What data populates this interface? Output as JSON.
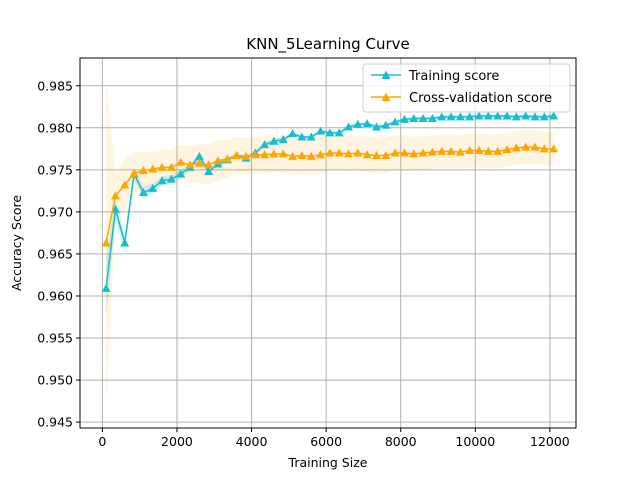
{
  "chart_data": {
    "type": "line",
    "title": "KNN_5Learning Curve",
    "xlabel": "Training Size",
    "ylabel": "Accuracy Score",
    "xlim": [
      -600,
      12700
    ],
    "ylim": [
      0.9443,
      0.9883
    ],
    "xticks": [
      0,
      2000,
      4000,
      6000,
      8000,
      10000,
      12000
    ],
    "yticks": [
      0.945,
      0.95,
      0.955,
      0.96,
      0.965,
      0.97,
      0.975,
      0.98,
      0.985
    ],
    "ytick_labels": [
      "0.945",
      "0.950",
      "0.955",
      "0.960",
      "0.965",
      "0.970",
      "0.975",
      "0.980",
      "0.985"
    ],
    "grid": true,
    "legend_position": "upper right",
    "x": [
      100,
      350,
      600,
      850,
      1100,
      1350,
      1600,
      1850,
      2100,
      2350,
      2600,
      2850,
      3100,
      3350,
      3600,
      3850,
      4100,
      4350,
      4600,
      4850,
      5100,
      5350,
      5600,
      5850,
      6100,
      6350,
      6600,
      6850,
      7100,
      7350,
      7600,
      7850,
      8100,
      8350,
      8600,
      8850,
      9100,
      9350,
      9600,
      9850,
      10100,
      10350,
      10600,
      10850,
      11100,
      11350,
      11600,
      11850,
      12100
    ],
    "series": [
      {
        "name": "Training score",
        "color": "#17becf",
        "marker": "triangle",
        "values": [
          0.9609,
          0.9703,
          0.9663,
          0.9745,
          0.9723,
          0.9728,
          0.9737,
          0.9739,
          0.9745,
          0.9753,
          0.9766,
          0.9748,
          0.9757,
          0.9762,
          0.9767,
          0.9764,
          0.977,
          0.978,
          0.9784,
          0.9786,
          0.9793,
          0.9789,
          0.9789,
          0.9796,
          0.9794,
          0.9794,
          0.9801,
          0.9804,
          0.9805,
          0.9801,
          0.9803,
          0.9807,
          0.981,
          0.9811,
          0.9811,
          0.9811,
          0.9813,
          0.9813,
          0.9813,
          0.9813,
          0.9814,
          0.9814,
          0.9814,
          0.9814,
          0.9813,
          0.9814,
          0.9813,
          0.9813,
          0.9814
        ],
        "band": {
          "color": "#17becf",
          "opacity": 0.22,
          "halfwidth": [
            0.0035,
            0.0012,
            0.001,
            0.0008,
            0.0007,
            0.0006,
            0.0005,
            0.0005,
            0.0005,
            0.0004,
            0.0004,
            0.0004,
            0.0003,
            0.0003,
            0.0003,
            0.0003,
            0.0003,
            0.0003,
            0.0003,
            0.0003,
            0.0002,
            0.0002,
            0.0002,
            0.0002,
            0.0002,
            0.0002,
            0.0002,
            0.0002,
            0.0002,
            0.0002,
            0.0002,
            0.0002,
            0.0002,
            0.0002,
            0.0002,
            0.0002,
            0.0002,
            0.0002,
            0.0002,
            0.0002,
            0.0002,
            0.0002,
            0.0002,
            0.0002,
            0.0002,
            0.0002,
            0.0002,
            0.0002,
            0.0002
          ]
        }
      },
      {
        "name": "Cross-validation score",
        "color": "#ffa500",
        "marker": "triangle",
        "values": [
          0.9663,
          0.9719,
          0.9732,
          0.9746,
          0.9749,
          0.9751,
          0.9753,
          0.9753,
          0.9759,
          0.9756,
          0.9758,
          0.9756,
          0.9761,
          0.9763,
          0.9767,
          0.9766,
          0.9768,
          0.9768,
          0.9769,
          0.9769,
          0.9766,
          0.9767,
          0.9766,
          0.9768,
          0.977,
          0.977,
          0.9769,
          0.977,
          0.9768,
          0.9767,
          0.9767,
          0.977,
          0.977,
          0.9769,
          0.977,
          0.9771,
          0.9772,
          0.9772,
          0.9771,
          0.9773,
          0.9773,
          0.9772,
          0.9772,
          0.9774,
          0.9776,
          0.9777,
          0.9777,
          0.9775,
          0.9775
        ],
        "band": {
          "color": "#ffa500",
          "opacity": 0.12,
          "halfwidth": [
            0.0195,
            0.0025,
            0.003,
            0.0025,
            0.0022,
            0.0021,
            0.0021,
            0.0021,
            0.0021,
            0.0022,
            0.0023,
            0.0024,
            0.0024,
            0.0023,
            0.0022,
            0.0022,
            0.0022,
            0.0022,
            0.0022,
            0.0022,
            0.0022,
            0.0022,
            0.0022,
            0.0022,
            0.0021,
            0.0021,
            0.0021,
            0.0021,
            0.0021,
            0.0021,
            0.0021,
            0.0021,
            0.0021,
            0.002,
            0.002,
            0.002,
            0.002,
            0.002,
            0.002,
            0.002,
            0.002,
            0.002,
            0.002,
            0.002,
            0.002,
            0.002,
            0.002,
            0.002,
            0.002
          ]
        }
      }
    ]
  }
}
